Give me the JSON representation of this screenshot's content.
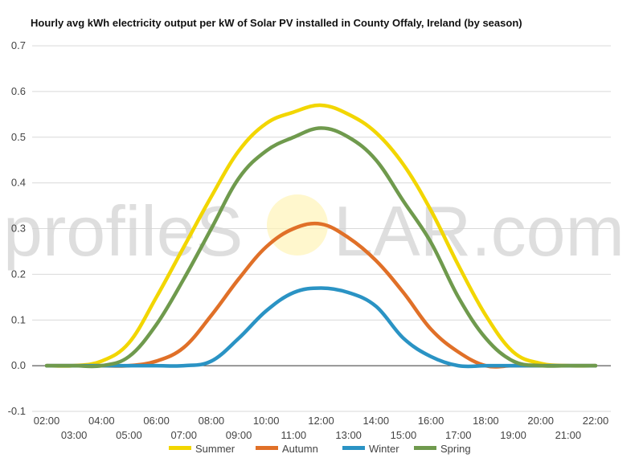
{
  "chart_data": {
    "type": "line",
    "title": "Hourly avg kWh electricity output per kW of Solar PV installed in County Offaly, Ireland (by season)",
    "xlabel": "",
    "ylabel": "",
    "ylim": [
      -0.1,
      0.7
    ],
    "yticks": [
      "-0.1",
      "0.0",
      "0.1",
      "0.2",
      "0.3",
      "0.4",
      "0.5",
      "0.6",
      "0.7"
    ],
    "grid": true,
    "legend_position": "bottom",
    "x": [
      "02:00",
      "03:00",
      "04:00",
      "05:00",
      "06:00",
      "07:00",
      "08:00",
      "09:00",
      "10:00",
      "11:00",
      "12:00",
      "13:00",
      "14:00",
      "15:00",
      "16:00",
      "17:00",
      "18:00",
      "19:00",
      "20:00",
      "21:00",
      "22:00"
    ],
    "series": [
      {
        "name": "Summer",
        "color": "#f2d600",
        "values": [
          0,
          0,
          0.01,
          0.05,
          0.15,
          0.26,
          0.37,
          0.47,
          0.53,
          0.555,
          0.57,
          0.55,
          0.51,
          0.44,
          0.34,
          0.22,
          0.11,
          0.03,
          0.005,
          0,
          0
        ]
      },
      {
        "name": "Autumn",
        "color": "#e07028",
        "values": [
          0,
          0,
          0,
          0,
          0.01,
          0.04,
          0.11,
          0.19,
          0.26,
          0.3,
          0.31,
          0.28,
          0.23,
          0.16,
          0.08,
          0.03,
          0,
          0,
          0,
          0,
          0
        ]
      },
      {
        "name": "Winter",
        "color": "#2a93c4",
        "values": [
          0,
          0,
          0,
          0,
          0,
          0,
          0.01,
          0.06,
          0.12,
          0.16,
          0.17,
          0.16,
          0.13,
          0.06,
          0.02,
          0,
          0,
          0,
          0,
          0,
          0
        ]
      },
      {
        "name": "Spring",
        "color": "#6f9a4d",
        "values": [
          0,
          0,
          0,
          0.02,
          0.09,
          0.19,
          0.3,
          0.41,
          0.47,
          0.5,
          0.52,
          0.5,
          0.45,
          0.36,
          0.27,
          0.15,
          0.06,
          0.01,
          0,
          0,
          0
        ]
      }
    ]
  },
  "watermark": {
    "part1": "profileS",
    "part2": "LAR.com"
  }
}
